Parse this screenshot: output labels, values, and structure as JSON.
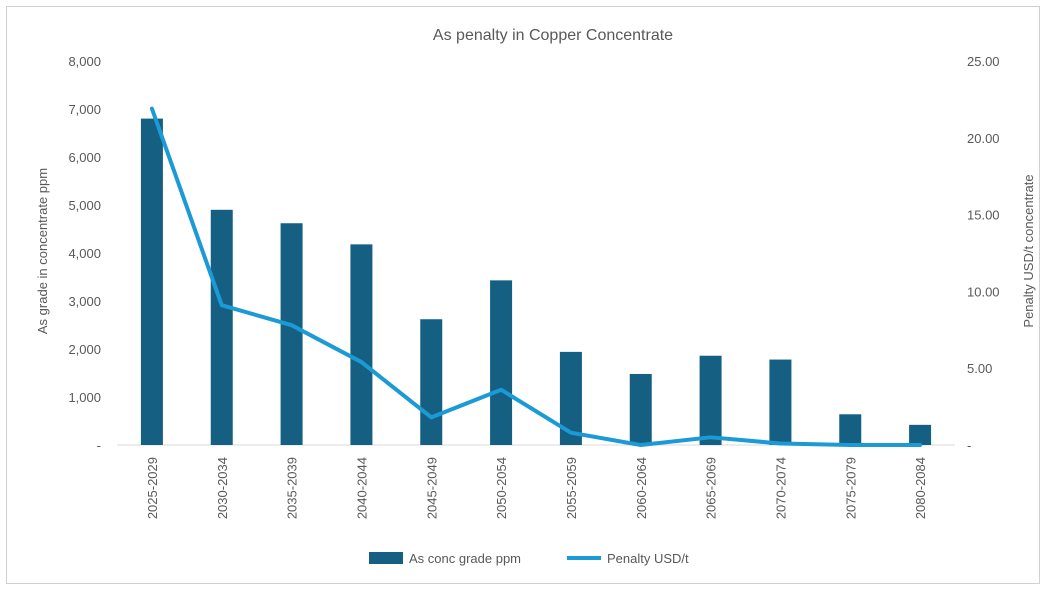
{
  "chart_data": {
    "type": "bar",
    "title": "As penalty in Copper Concentrate",
    "categories": [
      "2025-2029",
      "2030-2034",
      "2035-2039",
      "2040-2044",
      "2045-2049",
      "2050-2054",
      "2055-2059",
      "2060-2064",
      "2065-2069",
      "2070-2074",
      "2075-2079",
      "2080-2084"
    ],
    "series": [
      {
        "name": "As conc grade ppm",
        "type": "bar",
        "axis": "left",
        "color": "#156082",
        "values": [
          6800,
          4900,
          4620,
          4180,
          2620,
          3430,
          1940,
          1480,
          1860,
          1780,
          640,
          420
        ]
      },
      {
        "name": "Penalty USD/t",
        "type": "line",
        "axis": "right",
        "color": "#1b9ad6",
        "values": [
          21.9,
          9.1,
          7.8,
          5.4,
          1.8,
          3.6,
          0.8,
          0.0,
          0.5,
          0.1,
          0.0,
          0.0
        ]
      }
    ],
    "ylabel": "As grade in concentrate ppm",
    "ylabel_right": "Penalty USD/t concentrate",
    "ylim": [
      0,
      8000
    ],
    "ylim_right": [
      0,
      25
    ],
    "yticks": [
      "-",
      "1,000",
      "2,000",
      "3,000",
      "4,000",
      "5,000",
      "6,000",
      "7,000",
      "8,000"
    ],
    "yticks_right": [
      "-",
      "5.00",
      "10.00",
      "15.00",
      "20.00",
      "25.00"
    ],
    "grid": false,
    "legend_position": "bottom"
  }
}
